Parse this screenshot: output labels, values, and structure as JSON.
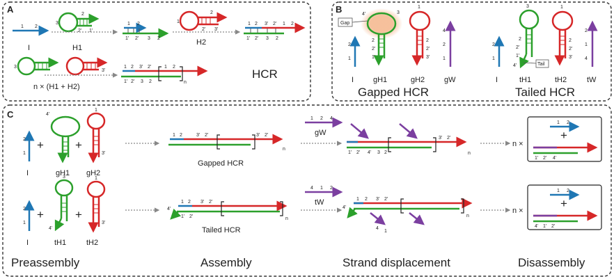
{
  "panels": {
    "a": {
      "letter": "A",
      "title": "HCR"
    },
    "b": {
      "letter": "B",
      "caption_gapped": "Gapped HCR",
      "caption_tailed": "Tailed HCR"
    },
    "c": {
      "letter": "C"
    }
  },
  "strands": {
    "I": "I",
    "H1": "H1",
    "H2": "H2",
    "gH1": "gH1",
    "gH2": "gH2",
    "gW": "gW",
    "tH1": "tH1",
    "tH2": "tH2",
    "tW": "tW",
    "n_label": "n × (H1 + H2)"
  },
  "callouts": {
    "gap": "Gap",
    "tail": "Tail"
  },
  "domains": {
    "d1": "1",
    "d2": "2",
    "d3": "3",
    "d4": "4",
    "d1p": "1'",
    "d2p": "2'",
    "d3p": "3'",
    "d4p": "4'",
    "n": "n",
    "times": "n ×",
    "plus": "+"
  },
  "products": {
    "gapped": "Gapped HCR",
    "tailed": "Tailed HCR"
  },
  "stages": [
    "Preassembly",
    "Assembly",
    "Strand displacement",
    "Disassembly"
  ],
  "colors": {
    "blue": "#1f77b4",
    "green": "#2ca02c",
    "red": "#d62728",
    "purple": "#7b3fa0",
    "arrow": "#888888"
  }
}
